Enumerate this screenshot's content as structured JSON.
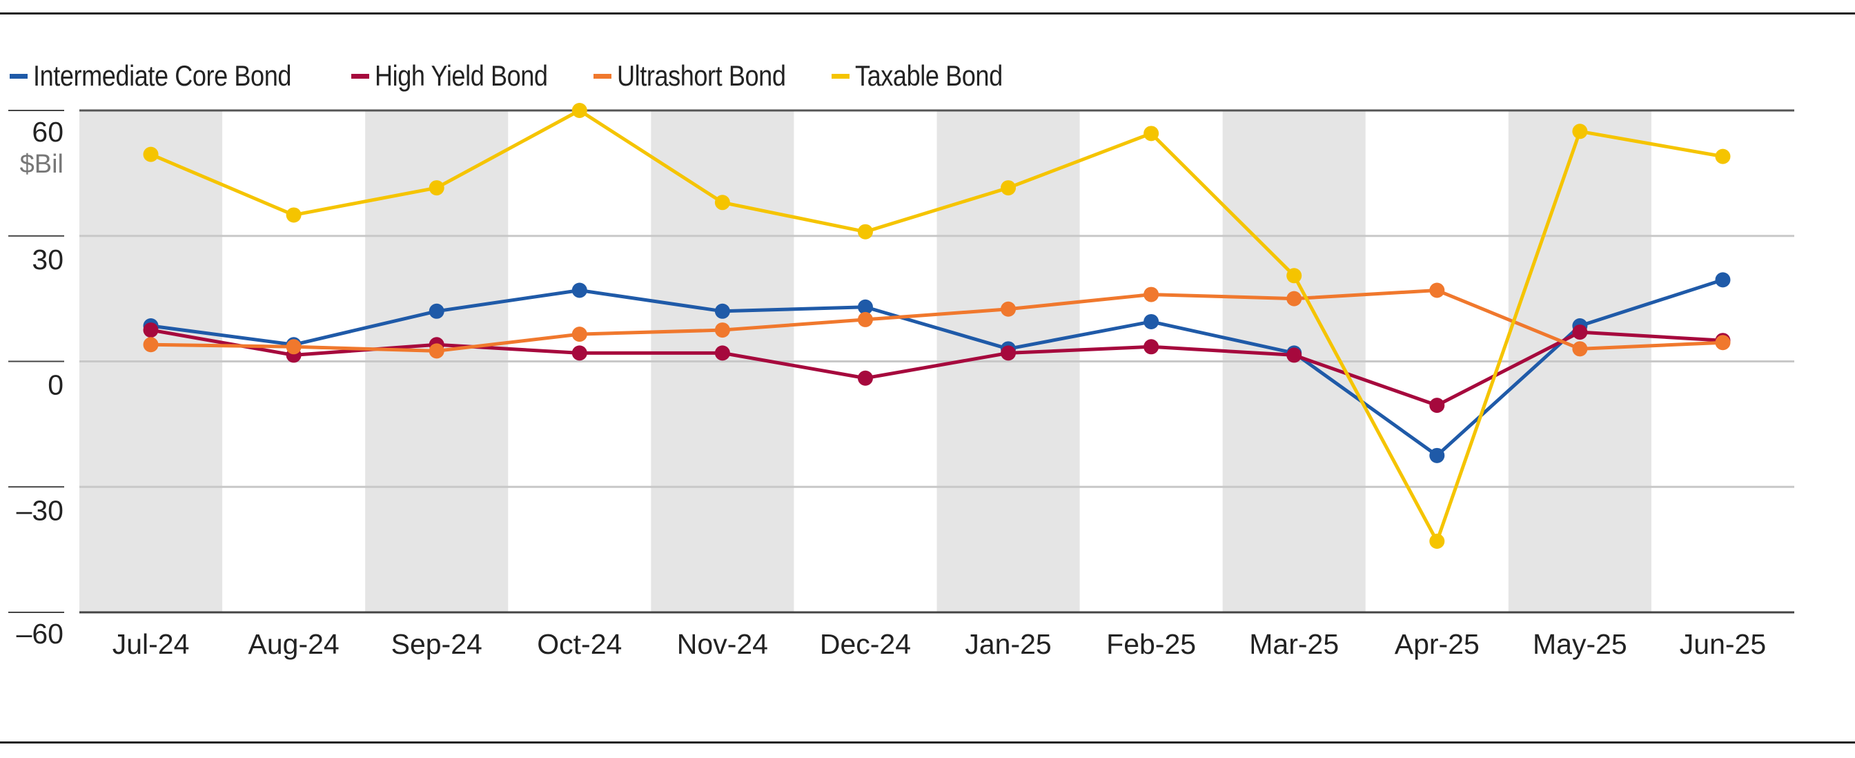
{
  "chart_data": {
    "type": "line",
    "title": "",
    "xlabel": "",
    "ylabel": "$Bil",
    "categories": [
      "Jul-24",
      "Aug-24",
      "Sep-24",
      "Oct-24",
      "Nov-24",
      "Dec-24",
      "Jan-25",
      "Feb-25",
      "Mar-25",
      "Apr-25",
      "May-25",
      "Jun-25"
    ],
    "y_ticks": [
      "60",
      "30",
      "0",
      "–30",
      "–60"
    ],
    "y_tick_values": [
      60,
      30,
      0,
      -30,
      -60
    ],
    "ylim": [
      -60,
      60
    ],
    "grid": true,
    "legend_position": "top-left",
    "alternating_column_shading": true,
    "series": [
      {
        "name": "Intermediate Core Bond",
        "color": "#1f5aa8",
        "values": [
          8.5,
          4.0,
          12.0,
          17.0,
          12.0,
          13.0,
          3.0,
          9.5,
          2.0,
          -22.5,
          8.5,
          19.5
        ]
      },
      {
        "name": "High Yield Bond",
        "color": "#a6093d",
        "values": [
          7.5,
          1.5,
          4.0,
          2.0,
          2.0,
          -4.0,
          2.0,
          3.5,
          1.5,
          -10.5,
          7.0,
          5.0
        ]
      },
      {
        "name": "Ultrashort Bond",
        "color": "#f0782d",
        "values": [
          4.0,
          3.5,
          2.5,
          6.5,
          7.5,
          10.0,
          12.5,
          16.0,
          15.0,
          17.0,
          3.0,
          4.5
        ]
      },
      {
        "name": "Taxable Bond",
        "color": "#f5c400",
        "values": [
          49.5,
          35.0,
          41.5,
          60.0,
          38.0,
          31.0,
          41.5,
          54.5,
          20.5,
          -43.0,
          55.0,
          49.0
        ]
      }
    ]
  }
}
